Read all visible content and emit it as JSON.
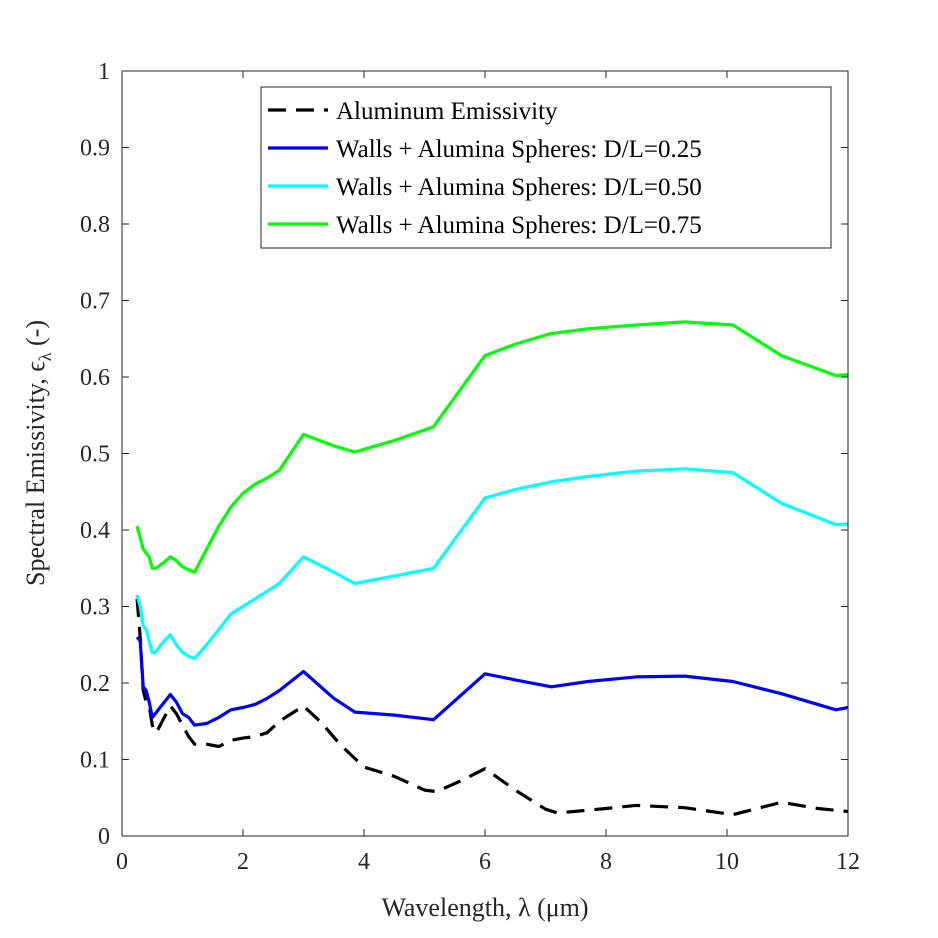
{
  "chart_data": {
    "type": "line",
    "xlabel": "Wavelength, λ (μm)",
    "ylabel": "Spectral Emissivity, ϵ",
    "ylabel_subscript": "λ",
    "ylabel_suffix": " (-)",
    "xlim": [
      0,
      12
    ],
    "ylim": [
      0,
      1
    ],
    "xticks": [
      0,
      2,
      4,
      6,
      8,
      10,
      12
    ],
    "yticks": [
      0,
      0.1,
      0.2,
      0.3,
      0.4,
      0.5,
      0.6,
      0.7,
      0.8,
      0.9,
      1
    ],
    "xtick_labels": [
      "0",
      "2",
      "4",
      "6",
      "8",
      "10",
      "12"
    ],
    "ytick_labels": [
      "0",
      "0.1",
      "0.2",
      "0.3",
      "0.4",
      "0.5",
      "0.6",
      "0.7",
      "0.8",
      "0.9",
      "1"
    ],
    "grid": false,
    "legend_position": "top-right",
    "series": [
      {
        "name": "Aluminum Emissivity",
        "color": "#000000",
        "dash": "dashed",
        "x": [
          0.25,
          0.3,
          0.35,
          0.4,
          0.45,
          0.5,
          0.55,
          0.6,
          0.7,
          0.8,
          0.9,
          1.0,
          1.1,
          1.2,
          1.4,
          1.6,
          1.8,
          2.0,
          2.2,
          2.4,
          2.6,
          3.0,
          3.3,
          3.6,
          4.0,
          4.5,
          5.0,
          5.2,
          5.6,
          6.0,
          6.5,
          7.0,
          7.2,
          8.0,
          8.5,
          9.3,
          10.1,
          10.9,
          11.5,
          12.0
        ],
        "y": [
          0.31,
          0.26,
          0.19,
          0.175,
          0.17,
          0.145,
          0.135,
          0.14,
          0.155,
          0.17,
          0.16,
          0.145,
          0.13,
          0.12,
          0.12,
          0.117,
          0.125,
          0.128,
          0.13,
          0.135,
          0.15,
          0.17,
          0.148,
          0.12,
          0.09,
          0.078,
          0.06,
          0.058,
          0.072,
          0.088,
          0.06,
          0.035,
          0.03,
          0.036,
          0.04,
          0.037,
          0.028,
          0.044,
          0.036,
          0.032
        ]
      },
      {
        "name": "Walls + Alumina Spheres: D/L=0.25",
        "color": "#0000ff",
        "dash": "solid",
        "x": [
          0.25,
          0.3,
          0.35,
          0.4,
          0.45,
          0.5,
          0.55,
          0.6,
          0.7,
          0.8,
          0.9,
          1.0,
          1.1,
          1.2,
          1.4,
          1.6,
          1.8,
          2.0,
          2.2,
          2.4,
          2.6,
          3.0,
          3.5,
          3.85,
          4.5,
          5.15,
          6.0,
          6.5,
          7.1,
          7.7,
          8.5,
          9.3,
          10.1,
          10.9,
          11.8,
          12.0
        ],
        "y": [
          0.26,
          0.255,
          0.195,
          0.19,
          0.175,
          0.155,
          0.16,
          0.165,
          0.175,
          0.185,
          0.175,
          0.16,
          0.155,
          0.145,
          0.147,
          0.155,
          0.165,
          0.168,
          0.172,
          0.18,
          0.19,
          0.215,
          0.18,
          0.162,
          0.158,
          0.152,
          0.212,
          0.204,
          0.195,
          0.202,
          0.208,
          0.209,
          0.202,
          0.186,
          0.165,
          0.168
        ]
      },
      {
        "name": "Walls + Alumina Spheres: D/L=0.50",
        "color": "#00ffff",
        "dash": "solid",
        "x": [
          0.25,
          0.3,
          0.35,
          0.4,
          0.45,
          0.5,
          0.55,
          0.6,
          0.7,
          0.8,
          0.9,
          1.0,
          1.1,
          1.2,
          1.4,
          1.6,
          1.8,
          2.0,
          2.2,
          2.4,
          2.6,
          3.0,
          3.5,
          3.85,
          4.5,
          5.15,
          6.0,
          6.5,
          7.1,
          7.7,
          8.5,
          9.3,
          10.1,
          10.9,
          11.8,
          12.0
        ],
        "y": [
          0.315,
          0.3,
          0.275,
          0.27,
          0.255,
          0.24,
          0.24,
          0.245,
          0.255,
          0.263,
          0.25,
          0.24,
          0.235,
          0.232,
          0.25,
          0.27,
          0.29,
          0.3,
          0.31,
          0.32,
          0.33,
          0.365,
          0.345,
          0.33,
          0.34,
          0.35,
          0.442,
          0.453,
          0.463,
          0.47,
          0.477,
          0.48,
          0.475,
          0.435,
          0.407,
          0.408
        ]
      },
      {
        "name": "Walls + Alumina Spheres: D/L=0.75",
        "color": "#00ff00",
        "dash": "solid",
        "x": [
          0.25,
          0.3,
          0.35,
          0.4,
          0.45,
          0.5,
          0.55,
          0.6,
          0.7,
          0.8,
          0.9,
          1.0,
          1.1,
          1.2,
          1.4,
          1.6,
          1.8,
          2.0,
          2.2,
          2.4,
          2.6,
          3.0,
          3.5,
          3.85,
          4.5,
          5.15,
          6.0,
          6.5,
          7.1,
          7.7,
          8.5,
          9.3,
          10.1,
          10.9,
          11.8,
          12.0
        ],
        "y": [
          0.405,
          0.39,
          0.375,
          0.37,
          0.365,
          0.35,
          0.35,
          0.352,
          0.358,
          0.365,
          0.36,
          0.352,
          0.348,
          0.345,
          0.375,
          0.405,
          0.43,
          0.448,
          0.46,
          0.468,
          0.478,
          0.525,
          0.51,
          0.502,
          0.517,
          0.535,
          0.628,
          0.643,
          0.657,
          0.663,
          0.668,
          0.672,
          0.668,
          0.628,
          0.602,
          0.603
        ]
      }
    ]
  }
}
